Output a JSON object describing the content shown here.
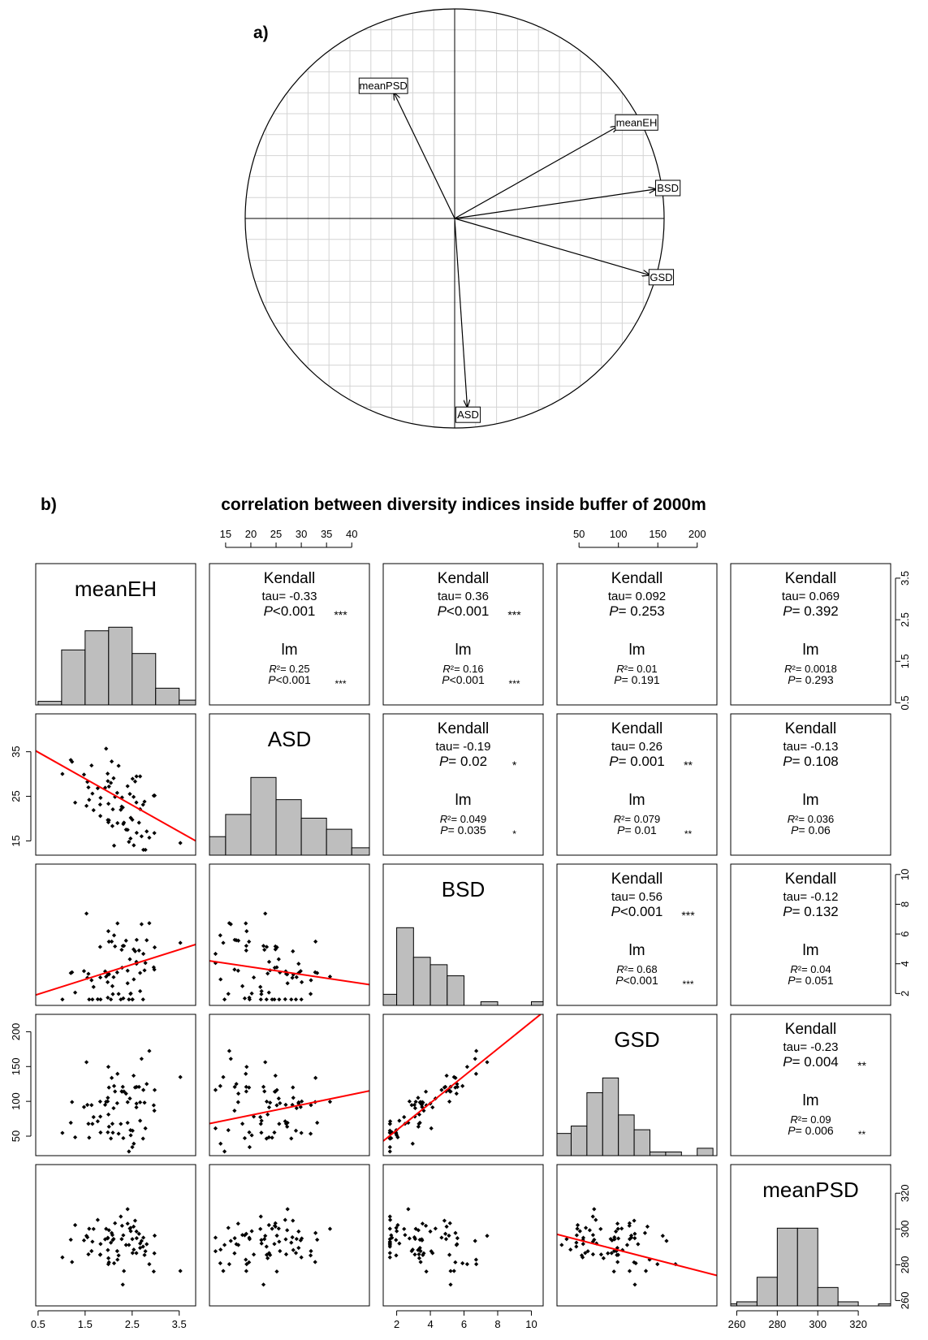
{
  "panel_a": {
    "label": "a)",
    "chart_data": {
      "type": "biplot",
      "title": "",
      "variables": [
        {
          "name": "meanPSD",
          "x": -0.29,
          "y": 0.6
        },
        {
          "name": "meanEH",
          "x": 0.78,
          "y": 0.44
        },
        {
          "name": "BSD",
          "x": 0.96,
          "y": 0.14
        },
        {
          "name": "GSD",
          "x": 0.93,
          "y": -0.27
        },
        {
          "name": "ASD",
          "x": 0.06,
          "y": -0.9
        }
      ],
      "xlim": [
        -1,
        1
      ],
      "ylim": [
        -1,
        1
      ],
      "grid": true
    }
  },
  "panel_b": {
    "label": "b)",
    "title": "correlation between diversity indices inside buffer of 2000m",
    "chart_data": {
      "type": "scatter-matrix",
      "variables": [
        "meanEH",
        "ASD",
        "BSD",
        "GSD",
        "meanPSD"
      ],
      "ranges": {
        "meanEH": [
          0.45,
          3.85
        ],
        "ASD": [
          11.8,
          43.5
        ],
        "BSD": [
          1.2,
          10.7
        ],
        "GSD": [
          22,
          225
        ],
        "meanPSD": [
          257,
          336
        ]
      },
      "ticks": {
        "meanEH": [
          "0.5",
          "1.5",
          "2.5",
          "3.5"
        ],
        "meanEH_right": [
          "0.5",
          "1.5",
          "2.5",
          "3.5"
        ],
        "meanEH_bottom": [
          "0.5",
          "1.5",
          "2.5",
          "3.5"
        ],
        "ASD_top": [
          "15",
          "20",
          "25",
          "30",
          "35",
          "40"
        ],
        "ASD_left": [
          "15",
          "25",
          "35"
        ],
        "BSD_right": [
          "2",
          "4",
          "6",
          "8",
          "10"
        ],
        "BSD_bottom": [
          "2",
          "4",
          "6",
          "8",
          "10"
        ],
        "GSD_top": [
          "50",
          "100",
          "150",
          "200"
        ],
        "GSD_left": [
          "50",
          "100",
          "150",
          "200"
        ],
        "meanPSD_right": [
          "260",
          "280",
          "300",
          "320"
        ],
        "meanPSD_bottom": [
          "260",
          "280",
          "300",
          "320"
        ]
      },
      "histograms": {
        "meanEH": {
          "breaks": [
            0.5,
            1.0,
            1.5,
            2.0,
            2.5,
            3.0,
            3.5,
            4.0
          ],
          "counts": [
            0.3,
            4.6,
            6.2,
            6.5,
            4.3,
            1.4,
            0.4
          ]
        },
        "ASD": {
          "breaks": [
            10,
            15,
            20,
            25,
            30,
            35,
            40,
            45
          ],
          "counts": [
            5,
            11,
            21,
            15,
            10,
            7,
            2
          ]
        },
        "BSD": {
          "breaks": [
            1,
            2,
            3,
            4,
            5,
            6,
            7,
            8,
            9,
            10,
            11
          ],
          "counts": [
            3,
            21,
            13,
            11,
            8,
            0,
            1,
            0,
            0,
            1
          ]
        },
        "GSD": {
          "breaks": [
            20,
            40,
            60,
            80,
            100,
            120,
            140,
            160,
            180,
            200,
            220,
            240
          ],
          "counts": [
            6,
            8,
            17,
            21,
            11,
            7,
            1,
            1,
            0,
            2,
            0
          ]
        },
        "meanPSD": {
          "breaks": [
            250,
            260,
            270,
            280,
            290,
            300,
            310,
            320,
            330,
            340
          ],
          "counts": [
            0.5,
            1,
            7,
            19,
            19,
            4.5,
            1,
            0,
            0.5
          ]
        }
      },
      "correlations": [
        {
          "row": 0,
          "col": 1,
          "method": "Kendall",
          "tau": "tau= -0.33",
          "p": "P<0.001",
          "p_sig": "***",
          "lm": "lm",
          "r2": "R²= 0.25",
          "lm_p": "P<0.001",
          "lm_sig": "***"
        },
        {
          "row": 0,
          "col": 2,
          "method": "Kendall",
          "tau": "tau= 0.36",
          "p": "P<0.001",
          "p_sig": "***",
          "lm": "lm",
          "r2": "R²= 0.16",
          "lm_p": "P<0.001",
          "lm_sig": "***"
        },
        {
          "row": 0,
          "col": 3,
          "method": "Kendall",
          "tau": "tau= 0.092",
          "p": "P= 0.253",
          "p_sig": "",
          "lm": "lm",
          "r2": "R²= 0.01",
          "lm_p": "P= 0.191",
          "lm_sig": ""
        },
        {
          "row": 0,
          "col": 4,
          "method": "Kendall",
          "tau": "tau= 0.069",
          "p": "P= 0.392",
          "p_sig": "",
          "lm": "lm",
          "r2": "R²= 0.0018",
          "lm_p": "P= 0.293",
          "lm_sig": ""
        },
        {
          "row": 1,
          "col": 2,
          "method": "Kendall",
          "tau": "tau= -0.19",
          "p": "P= 0.02",
          "p_sig": "*",
          "lm": "lm",
          "r2": "R²= 0.049",
          "lm_p": "P= 0.035",
          "lm_sig": "*"
        },
        {
          "row": 1,
          "col": 3,
          "method": "Kendall",
          "tau": "tau= 0.26",
          "p": "P= 0.001",
          "p_sig": "**",
          "lm": "lm",
          "r2": "R²= 0.079",
          "lm_p": "P= 0.01",
          "lm_sig": "**"
        },
        {
          "row": 1,
          "col": 4,
          "method": "Kendall",
          "tau": "tau= -0.13",
          "p": "P= 0.108",
          "p_sig": "",
          "lm": "lm",
          "r2": "R²= 0.036",
          "lm_p": "P= 0.06",
          "lm_sig": ""
        },
        {
          "row": 2,
          "col": 3,
          "method": "Kendall",
          "tau": "tau= 0.56",
          "p": "P<0.001",
          "p_sig": "***",
          "lm": "lm",
          "r2": "R²= 0.68",
          "lm_p": "P<0.001",
          "lm_sig": "***"
        },
        {
          "row": 2,
          "col": 4,
          "method": "Kendall",
          "tau": "tau= -0.12",
          "p": "P= 0.132",
          "p_sig": "",
          "lm": "lm",
          "r2": "R²= 0.04",
          "lm_p": "P= 0.051",
          "lm_sig": ""
        },
        {
          "row": 3,
          "col": 4,
          "method": "Kendall",
          "tau": "tau= -0.23",
          "p": "P= 0.004",
          "p_sig": "**",
          "lm": "lm",
          "r2": "R²= 0.09",
          "lm_p": "P= 0.006",
          "lm_sig": "**"
        }
      ],
      "regression_lines": [
        {
          "row": 1,
          "col": 0,
          "x0": 0.45,
          "y0": 35.2,
          "x1": 3.85,
          "y1": 15.0
        },
        {
          "row": 2,
          "col": 0,
          "x0": 0.45,
          "y0": 1.9,
          "x1": 3.85,
          "y1": 5.3
        },
        {
          "row": 2,
          "col": 1,
          "x0": 11.8,
          "y0": 4.2,
          "x1": 43.5,
          "y1": 2.6
        },
        {
          "row": 3,
          "col": 1,
          "x0": 11.8,
          "y0": 68,
          "x1": 43.5,
          "y1": 115
        },
        {
          "row": 3,
          "col": 2,
          "x0": 1.2,
          "y0": 43,
          "x1": 10.7,
          "y1": 228
        },
        {
          "row": 4,
          "col": 3,
          "x0": 22,
          "y0": 297,
          "x1": 225,
          "y1": 274
        }
      ],
      "regression_color": "#ff0000",
      "histogram_fill": "#bebebe",
      "sample_size_estimate": 70
    }
  }
}
